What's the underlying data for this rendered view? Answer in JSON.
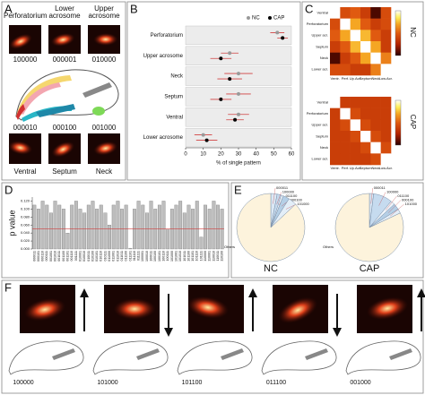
{
  "panel_labels": [
    "A",
    "B",
    "C",
    "D",
    "E",
    "F"
  ],
  "panel_a": {
    "top": [
      {
        "label": "Perforatorium",
        "code": "100000"
      },
      {
        "label": "Lower acrosome",
        "code": "000001"
      },
      {
        "label": "Upper acrosome",
        "code": "010000"
      }
    ],
    "bottom": [
      {
        "label": "Ventral",
        "code": "000010"
      },
      {
        "label": "Septum",
        "code": "000100"
      },
      {
        "label": "Neck",
        "code": "001000"
      }
    ]
  },
  "chart_data": [
    {
      "type": "dot",
      "categories": [
        "Perforatorium",
        "Upper acrosome",
        "Neck",
        "Septum",
        "Ventral",
        "Lower acrosome"
      ],
      "xlim": [
        0,
        60
      ],
      "xticks": [
        0,
        10,
        20,
        30,
        40,
        50,
        60
      ],
      "xlabel": "% of single pattern",
      "legend": "top-right",
      "series": [
        {
          "name": "NC",
          "color": "#999999",
          "values": [
            52,
            25,
            30,
            30,
            30,
            10
          ],
          "errors": [
            4,
            5,
            8,
            7,
            6,
            5
          ]
        },
        {
          "name": "CAP",
          "color": "#000000",
          "values": [
            55,
            20,
            25,
            20,
            28,
            12
          ],
          "errors": [
            3,
            6,
            7,
            6,
            5,
            6
          ]
        }
      ],
      "error_color": "#d04040"
    },
    {
      "type": "heatmap",
      "title": "NC",
      "rows": [
        "Ventral",
        "Perforatorium",
        "Upper acr.",
        "Septum",
        "Neck",
        "Lower acr."
      ],
      "columns": [
        "Ventr.",
        "Perf.",
        "Up.Acr.",
        "Septum",
        "Neck",
        "Low.Acr."
      ],
      "zlim": [
        0,
        1
      ],
      "values": [
        [
          1,
          0.35,
          0.4,
          0.3,
          0.05,
          0.35
        ],
        [
          0.35,
          1,
          0.6,
          0.4,
          0.3,
          0.35
        ],
        [
          0.4,
          0.6,
          1,
          0.65,
          0.4,
          0.3
        ],
        [
          0.3,
          0.4,
          0.65,
          1,
          0.6,
          0.3
        ],
        [
          0.05,
          0.3,
          0.4,
          0.6,
          1,
          0.5
        ],
        [
          0.35,
          0.35,
          0.3,
          0.3,
          0.5,
          1
        ]
      ]
    },
    {
      "type": "heatmap",
      "title": "CAP",
      "rows": [
        "Ventral",
        "Perforatorium",
        "Upper acr.",
        "Septum",
        "Neck",
        "Lower acr."
      ],
      "columns": [
        "Ventr.",
        "Perf.",
        "Up.Acr.",
        "Septum",
        "Neck",
        "Low.Acr."
      ],
      "zlim": [
        0,
        1
      ],
      "values": [
        [
          1,
          0.3,
          0.3,
          0.3,
          0.3,
          0.3
        ],
        [
          0.3,
          1,
          0.35,
          0.3,
          0.3,
          0.3
        ],
        [
          0.3,
          0.35,
          1,
          0.35,
          0.3,
          0.3
        ],
        [
          0.3,
          0.3,
          0.35,
          1,
          0.35,
          0.3
        ],
        [
          0.3,
          0.3,
          0.3,
          0.35,
          1,
          0.35
        ],
        [
          0.3,
          0.3,
          0.3,
          0.3,
          0.35,
          1
        ]
      ]
    },
    {
      "type": "bar",
      "ylabel": "p value",
      "color": "#bdbdbd",
      "hline": 0.05,
      "hline_color": "#d04040",
      "ylim": [
        0,
        0.13
      ],
      "yticks": [
        {
          "value": 0,
          "label": "0.000"
        },
        {
          "value": 0.02,
          "label": "0.020"
        },
        {
          "value": 0.04,
          "label": "0.040"
        },
        {
          "value": 0.06,
          "label": "0.060"
        },
        {
          "value": 0.08,
          "label": "0.080"
        },
        {
          "value": 0.1,
          "label": "0.100"
        },
        {
          "value": 0.12,
          "label": "0.120"
        }
      ],
      "categories": [
        "000011",
        "000101",
        "000110",
        "000111",
        "001001",
        "001010",
        "001011",
        "001100",
        "001101",
        "001110",
        "001111",
        "010001",
        "010010",
        "010011",
        "010100",
        "010101",
        "010110",
        "010111",
        "011000",
        "011001",
        "011010",
        "011011",
        "011100",
        "011101",
        "011110",
        "011111",
        "100001",
        "100010",
        "100011",
        "100100",
        "100101",
        "100110",
        "100111",
        "101000",
        "101001",
        "101010",
        "101011",
        "101100",
        "101101",
        "101110",
        "101111",
        "110000",
        "110001",
        "110010",
        "110011",
        "110100"
      ],
      "values": [
        0.11,
        0.1,
        0.12,
        0.11,
        0.09,
        0.12,
        0.11,
        0.1,
        0.04,
        0.11,
        0.12,
        0.1,
        0.09,
        0.11,
        0.12,
        0.1,
        0.11,
        0.09,
        0.06,
        0.11,
        0.12,
        0.1,
        0.11,
        0.002,
        0.1,
        0.12,
        0.11,
        0.09,
        0.12,
        0.1,
        0.11,
        0.12,
        0.05,
        0.1,
        0.11,
        0.12,
        0.09,
        0.11,
        0.1,
        0.12,
        0.03,
        0.11,
        0.1,
        0.12,
        0.11,
        0.1
      ]
    },
    {
      "type": "pie",
      "title": "NC",
      "categories": [
        "000011",
        "100000",
        "011100",
        "000100",
        "101000",
        "Others"
      ],
      "values": [
        3,
        2,
        1,
        3,
        4,
        87
      ],
      "colors": [
        "#dbe8f5",
        "#c6dbef",
        "#eef4fa",
        "#b5cfe6",
        "#e3eef8",
        "#fdf3dc"
      ]
    },
    {
      "type": "pie",
      "title": "CAP",
      "categories": [
        "000011",
        "100000",
        "011100",
        "000100",
        "101000",
        "Others"
      ],
      "values": [
        2,
        9,
        2,
        3,
        2,
        82
      ],
      "colors": [
        "#dbe8f5",
        "#c6dbef",
        "#eef4fa",
        "#b5cfe6",
        "#e3eef8",
        "#fdf3dc"
      ]
    }
  ],
  "panel_f": {
    "codes": [
      "100000",
      "101000",
      "101100",
      "011100",
      "001000"
    ]
  }
}
